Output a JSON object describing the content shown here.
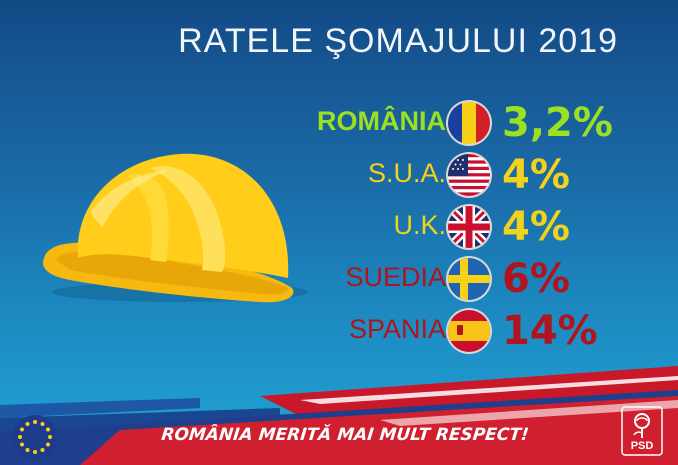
{
  "title": "RATELE ŞOMAJULUI 2019",
  "colors": {
    "green": "#9be022",
    "yellow": "#f2d21a",
    "red": "#b0141d",
    "blue_dark": "#134a86",
    "blue_light": "#21a5d6"
  },
  "rows": [
    {
      "label": "ROMÂNIA",
      "value": "3,2%",
      "flag": "romania-flag"
    },
    {
      "label": "S.U.A.",
      "value": "4%",
      "flag": "usa-flag"
    },
    {
      "label": "U.K.",
      "value": "4%",
      "flag": "uk-flag"
    },
    {
      "label": "SUEDIA",
      "value": "6%",
      "flag": "sweden-flag"
    },
    {
      "label": "SPANIA",
      "value": "14%",
      "flag": "spain-flag"
    }
  ],
  "slogan": "ROMÂNIA MERITĂ MAI MULT RESPECT!",
  "logo": {
    "psd_text": "PSD"
  }
}
